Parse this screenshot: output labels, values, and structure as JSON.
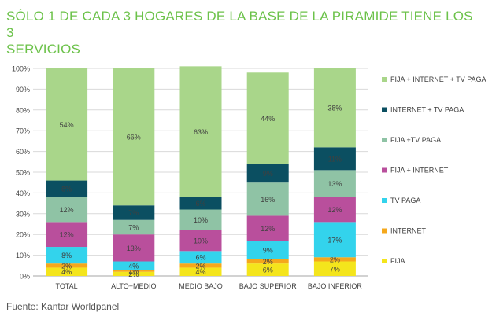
{
  "title": "SÓLO 1 DE CADA 3 HOGARES DE LA BASE DE LA PIRAMIDE TIENE LOS 3\nSERVICIOS",
  "source": "Fuente: Kantar Worldpanel",
  "chart_data": {
    "type": "bar",
    "stacked": true,
    "percent": true,
    "categories": [
      "TOTAL",
      "ALTO+MEDIO",
      "MEDIO BAJO",
      "BAJO SUPERIOR",
      "BAJO INFERIOR"
    ],
    "ylim": [
      0,
      100
    ],
    "yticks": [
      "0%",
      "10%",
      "20%",
      "30%",
      "40%",
      "50%",
      "60%",
      "70%",
      "80%",
      "90%",
      "100%"
    ],
    "grid": true,
    "legend_position": "right",
    "series": [
      {
        "name": "FIJA",
        "color": "#f4e51c",
        "values": [
          4,
          2,
          4,
          6,
          7
        ],
        "labels": [
          "4%",
          "2%",
          "4%",
          "6%",
          "7%"
        ]
      },
      {
        "name": "INTERNET",
        "color": "#f5a81c",
        "values": [
          2,
          1,
          2,
          2,
          2
        ],
        "labels": [
          "2%",
          "1%",
          "2%",
          "2%",
          "2%"
        ]
      },
      {
        "name": "TV PAGA",
        "color": "#33d3ec",
        "values": [
          8,
          4,
          6,
          9,
          17
        ],
        "labels": [
          "8%",
          "4%",
          "6%",
          "9%",
          "17%"
        ]
      },
      {
        "name": "FIJA + INTERNET",
        "color": "#b94f9c",
        "values": [
          12,
          13,
          10,
          12,
          12
        ],
        "labels": [
          "12%",
          "13%",
          "10%",
          "12%",
          "12%"
        ]
      },
      {
        "name": "FIJA +TV PAGA",
        "color": "#8fc3a5",
        "values": [
          12,
          7,
          10,
          16,
          13
        ],
        "labels": [
          "12%",
          "7%",
          "10%",
          "16%",
          "13%"
        ]
      },
      {
        "name": "INTERNET + TV PAGA",
        "color": "#0b4f61",
        "values": [
          8,
          7,
          6,
          9,
          11
        ],
        "labels": [
          "8%",
          "7%",
          "6%",
          "9%",
          "11%"
        ]
      },
      {
        "name": "FIJA + INTERNET + TV PAGA",
        "color": "#a9d68a",
        "values": [
          54,
          66,
          63,
          44,
          38
        ],
        "labels": [
          "54%",
          "66%",
          "63%",
          "44%",
          "38%"
        ]
      }
    ]
  }
}
